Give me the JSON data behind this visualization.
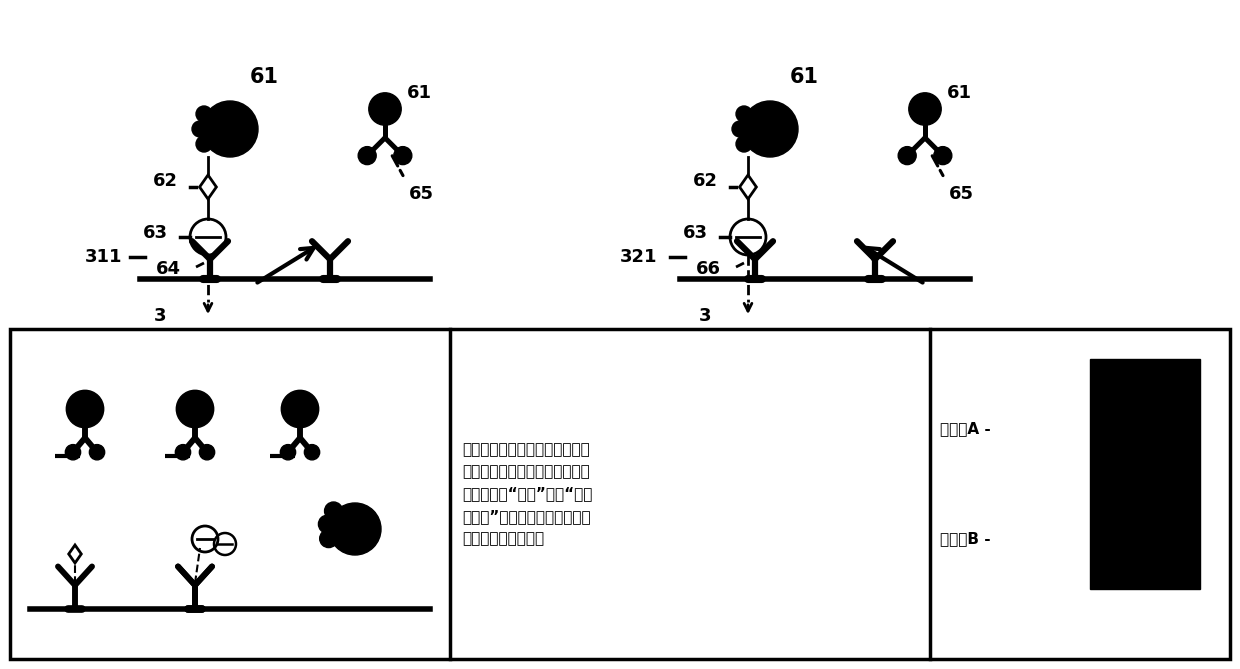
{
  "bg_color": "#ffffff",
  "lc": "#000000",
  "fs": 13,
  "fs_text": 11,
  "bottom_text": "将捕获抗体固定在检测线，在量\n子点上标记抗体构成荧光探针，\n与检测抗原“桥连”形成“双抗\n体夹心”免疫复合物，荧光探针\n积累形成检测信号。",
  "label_A": "检测线A -",
  "label_B": "检测线B -"
}
